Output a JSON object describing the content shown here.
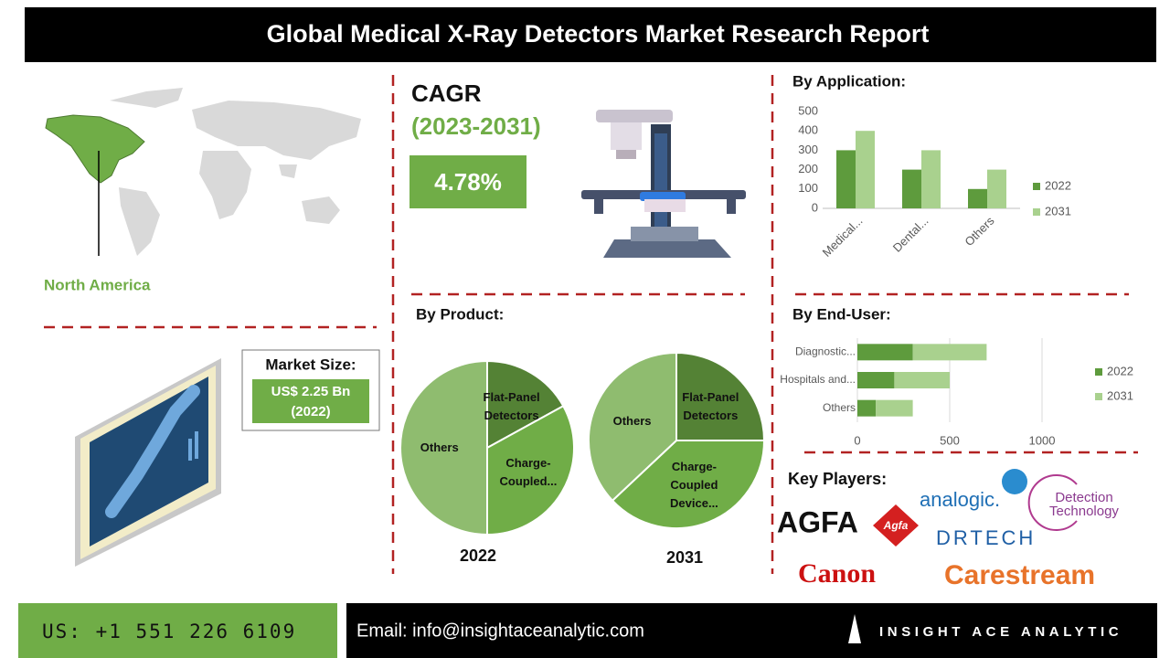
{
  "title": "Global Medical X-Ray Detectors Market Research Report",
  "region": "North America",
  "cagr": {
    "label": "CAGR",
    "period": "(2023-2031)",
    "value": "4.78%"
  },
  "market_size": {
    "label": "Market Size:",
    "value": "US$ 2.25 Bn",
    "year": "(2022)"
  },
  "product_heading": "By Product:",
  "key_players": {
    "heading": "Key Players:",
    "logos": [
      "AGFA",
      "Agfa",
      "analogic.",
      "Detection Technology",
      "DRTECH",
      "Canon",
      "Carestream"
    ]
  },
  "footer": {
    "phone": "US: +1 551 226 6109",
    "email": "Email: info@insightaceanalytic.com",
    "brand": "INSIGHT ACE ANALYTIC"
  },
  "chart_data": [
    {
      "type": "bar",
      "title": "By Application:",
      "categories": [
        "Medical...",
        "Dental...",
        "Others"
      ],
      "series": [
        {
          "name": "2022",
          "color": "#5e9b3d",
          "values": [
            300,
            200,
            100
          ]
        },
        {
          "name": "2031",
          "color": "#a9d18e",
          "values": [
            400,
            300,
            200
          ]
        }
      ],
      "ylim": [
        0,
        500
      ],
      "yticks": [
        0,
        100,
        200,
        300,
        400,
        500
      ],
      "grid": false,
      "legend": "right"
    },
    {
      "type": "bar",
      "orientation": "horizontal",
      "stacked": true,
      "title": "By End-User:",
      "categories": [
        "Diagnostic...",
        "Hospitals and...",
        "Others"
      ],
      "series": [
        {
          "name": "2022",
          "color": "#5e9b3d",
          "values": [
            300,
            200,
            100
          ]
        },
        {
          "name": "2031",
          "color": "#a9d18e",
          "values": [
            400,
            300,
            200
          ]
        }
      ],
      "xlim": [
        0,
        1000
      ],
      "xticks": [
        0,
        500,
        1000
      ],
      "grid": true,
      "legend": "right"
    },
    {
      "type": "pie",
      "title": "2022",
      "categories": [
        "Flat-Panel Detectors",
        "Charge-Coupled...",
        "Others"
      ],
      "values": [
        17,
        33,
        50
      ],
      "colors": [
        "#548235",
        "#70ad47",
        "#8fbc6f"
      ]
    },
    {
      "type": "pie",
      "title": "2031",
      "categories": [
        "Flat-Panel Detectors",
        "Charge-Coupled Device...",
        "Others"
      ],
      "values": [
        25,
        38,
        37
      ],
      "colors": [
        "#548235",
        "#70ad47",
        "#8fbc6f"
      ]
    }
  ]
}
